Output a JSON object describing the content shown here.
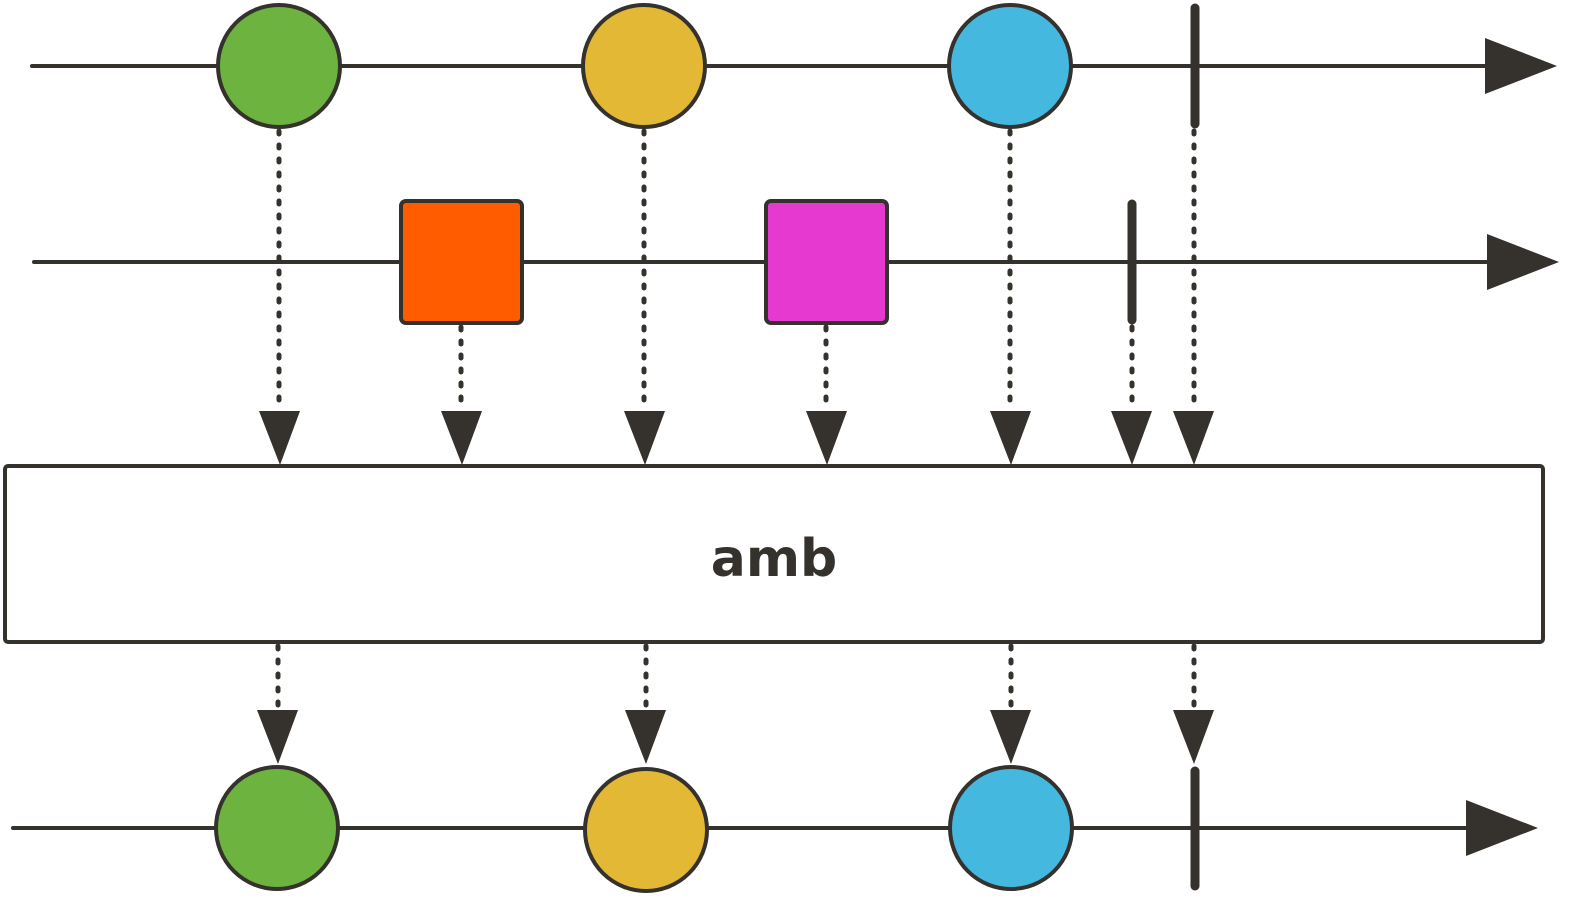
{
  "operator": {
    "label": "amb"
  },
  "colors": {
    "line": "#35312c",
    "green": "#6db33f",
    "yellow": "#e3b834",
    "blue": "#44b8de",
    "orange": "#ff5c00",
    "magenta": "#e639cf",
    "box_fill": "#ffffff"
  },
  "streams": [
    {
      "id": "source-1",
      "items": [
        {
          "shape": "circle",
          "color": "green"
        },
        {
          "shape": "circle",
          "color": "yellow"
        },
        {
          "shape": "circle",
          "color": "blue"
        }
      ],
      "completes": true
    },
    {
      "id": "source-2",
      "items": [
        {
          "shape": "square",
          "color": "orange"
        },
        {
          "shape": "square",
          "color": "magenta"
        }
      ],
      "completes": true
    },
    {
      "id": "output",
      "items": [
        {
          "shape": "circle",
          "color": "green"
        },
        {
          "shape": "circle",
          "color": "yellow"
        },
        {
          "shape": "circle",
          "color": "blue"
        }
      ],
      "completes": true
    }
  ]
}
